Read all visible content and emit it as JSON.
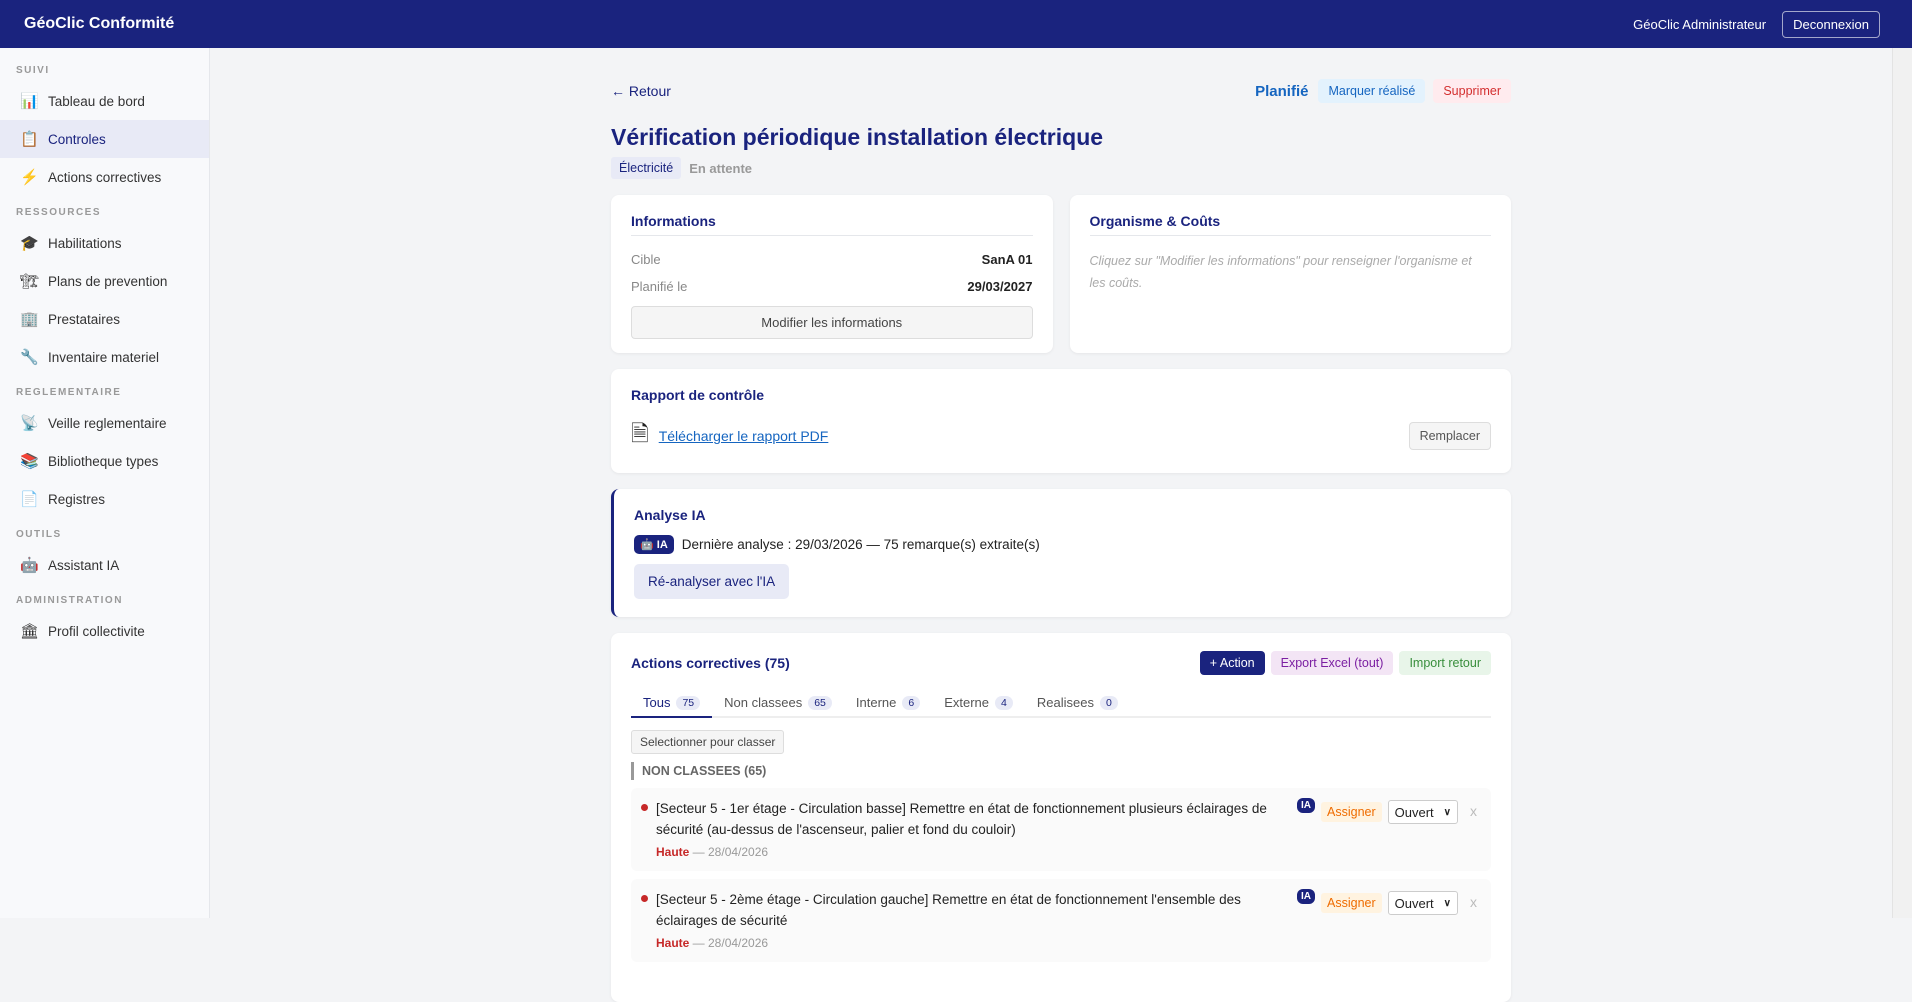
{
  "topbar": {
    "brand": "GéoClic Conformité",
    "user": "GéoClic Administrateur",
    "logout": "Deconnexion"
  },
  "sidebar": [
    {
      "section": "SUIVI",
      "items": [
        {
          "label": "Tableau de bord",
          "icon": "📊"
        },
        {
          "label": "Controles",
          "icon": "📋",
          "active": true
        },
        {
          "label": "Actions correctives",
          "icon": "⚡"
        }
      ]
    },
    {
      "section": "RESSOURCES",
      "items": [
        {
          "label": "Habilitations",
          "icon": "🎓"
        },
        {
          "label": "Plans de prevention",
          "icon": "🏗"
        },
        {
          "label": "Prestataires",
          "icon": "🏢"
        },
        {
          "label": "Inventaire materiel",
          "icon": "🔧"
        }
      ]
    },
    {
      "section": "REGLEMENTAIRE",
      "items": [
        {
          "label": "Veille reglementaire",
          "icon": "📡"
        },
        {
          "label": "Bibliotheque types",
          "icon": "📚"
        },
        {
          "label": "Registres",
          "icon": "📄"
        }
      ]
    },
    {
      "section": "OUTILS",
      "items": [
        {
          "label": "Assistant IA",
          "icon": "🤖"
        }
      ]
    },
    {
      "section": "ADMINISTRATION",
      "items": [
        {
          "label": "Profil collectivite",
          "icon": "🏛"
        }
      ]
    }
  ],
  "page": {
    "back": "← Retour",
    "status": "Planifié",
    "mark_done": "Marquer réalisé",
    "delete": "Supprimer",
    "title": "Vérification périodique installation électrique",
    "tag": "Électricité",
    "state": "En attente"
  },
  "info": {
    "title": "Informations",
    "rows": [
      {
        "k": "Cible",
        "v": "SanA 01"
      },
      {
        "k": "Planifié le",
        "v": "29/03/2027"
      }
    ],
    "edit": "Modifier les informations"
  },
  "org": {
    "title": "Organisme & Coûts",
    "hint": "Cliquez sur \"Modifier les informations\" pour renseigner l'organisme et les coûts."
  },
  "report": {
    "title": "Rapport de contrôle",
    "download": "Télécharger le rapport PDF",
    "replace": "Remplacer"
  },
  "analysis": {
    "title": "Analyse IA",
    "badge": "IA",
    "text": "Dernière analyse : 29/03/2026 — 75 remarque(s) extraite(s)",
    "reanalyze": "Ré-analyser avec l'IA"
  },
  "actions": {
    "title": "Actions correctives (75)",
    "add": "+ Action",
    "export": "Export Excel (tout)",
    "import": "Import retour",
    "tabs": [
      {
        "label": "Tous",
        "count": "75",
        "active": true
      },
      {
        "label": "Non classees",
        "count": "65"
      },
      {
        "label": "Interne",
        "count": "6"
      },
      {
        "label": "Externe",
        "count": "4"
      },
      {
        "label": "Realisees",
        "count": "0"
      }
    ],
    "select": "Selectionner pour classer",
    "group": "NON CLASSEES (65)",
    "items": [
      {
        "text": "[Secteur 5 - 1er étage - Circulation basse] Remettre en état de fonctionnement plusieurs éclairages de sécurité (au-dessus de l'ascenseur, palier et fond du couloir)",
        "priority": "Haute",
        "date": " — 28/04/2026",
        "ia": "IA",
        "assign": "Assigner",
        "status": "Ouvert",
        "remove": "x"
      },
      {
        "text": "[Secteur 5 - 2ème étage - Circulation gauche] Remettre en état de fonctionnement l'ensemble des éclairages de sécurité",
        "priority": "Haute",
        "date": " — 28/04/2026",
        "ia": "IA",
        "assign": "Assigner",
        "status": "Ouvert",
        "remove": "x"
      }
    ]
  }
}
